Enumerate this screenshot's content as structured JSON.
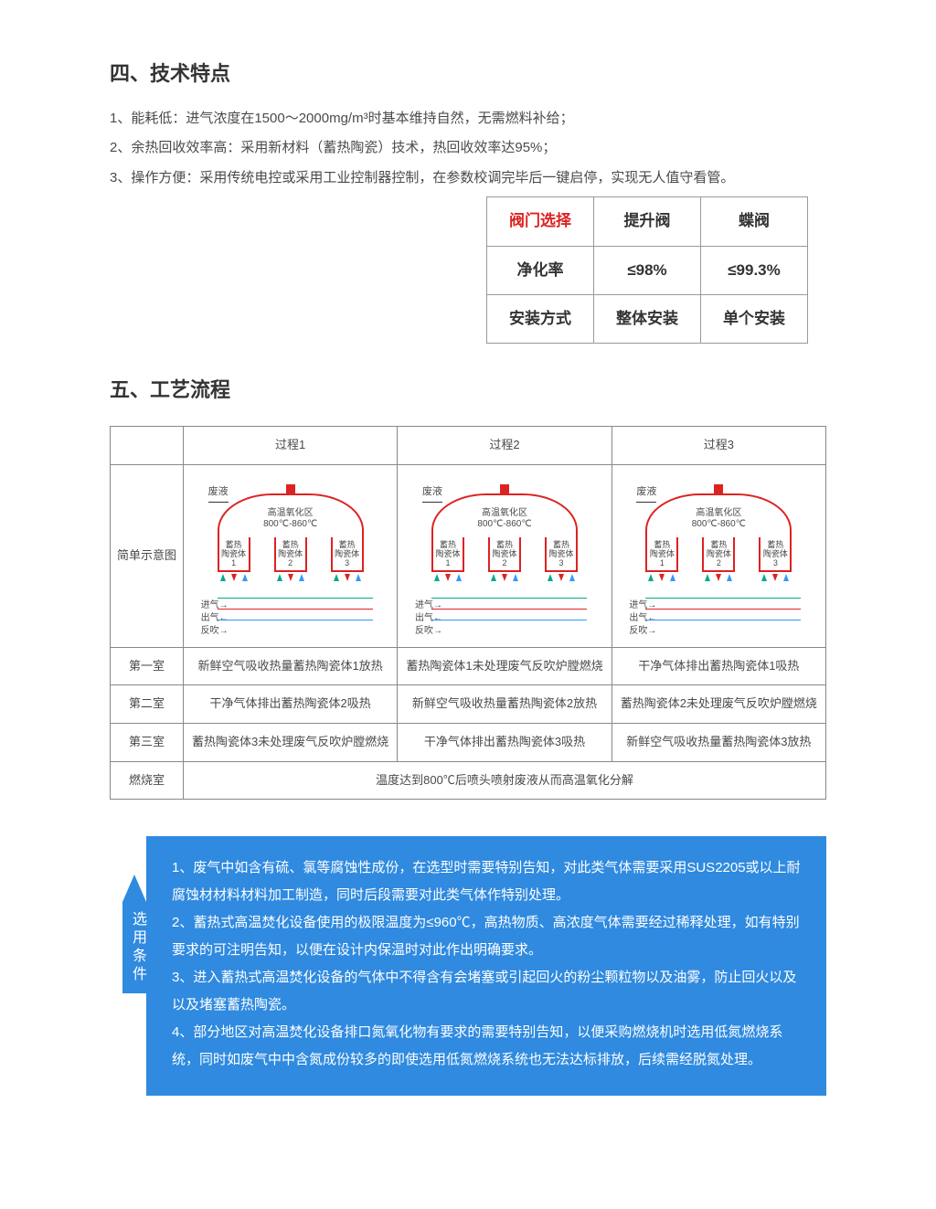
{
  "section4": {
    "heading": "四、技术特点",
    "items": [
      "1、能耗低：进气浓度在1500～2000mg/m³时基本维持自然，无需燃料补给；",
      "2、余热回收效率高：采用新材料（蓄热陶瓷）技术，热回收效率达95%；",
      "3、操作方便：采用传统电控或采用工业控制器控制，在参数校调完毕后一键启停，实现无人值守看管。"
    ]
  },
  "valve_table": {
    "header": [
      "阀门选择",
      "提升阀",
      "蝶阀"
    ],
    "rows": [
      [
        "净化率",
        "≤98%",
        "≤99.3%"
      ],
      [
        "安装方式",
        "整体安装",
        "单个安装"
      ]
    ],
    "header_red_index": 0,
    "border_color": "#999999",
    "text_color": "#333333",
    "red_color": "#dd2222",
    "cell_padding": "10px 24px",
    "font_size": 17
  },
  "section5": {
    "heading": "五、工艺流程"
  },
  "process_table": {
    "header_row": [
      "",
      "过程1",
      "过程2",
      "过程3"
    ],
    "diagram_row_label": "简单示意图",
    "diagram": {
      "waste_label": "废液",
      "zone_label_line1": "高温氧化区",
      "zone_label_line2": "800℃-860℃",
      "chamber_label_prefix": "蓄热",
      "chamber_label_line2": "陶瓷体",
      "chamber_numbers": [
        "1",
        "2",
        "3"
      ],
      "inlet_label": "进气→",
      "outlet_label": "出气←",
      "purge_label": "反吹→",
      "zone_border_color": "#dd2222",
      "arrow_green": "#00aa88",
      "arrow_red": "#dd2222",
      "arrow_blue": "#3399ff"
    },
    "rows": [
      {
        "label": "第一室",
        "cells": [
          "新鲜空气吸收热量蓄热陶瓷体1放热",
          "蓄热陶瓷体1未处理废气反吹炉膛燃烧",
          "干净气体排出蓄热陶瓷体1吸热"
        ]
      },
      {
        "label": "第二室",
        "cells": [
          "干净气体排出蓄热陶瓷体2吸热",
          "新鲜空气吸收热量蓄热陶瓷体2放热",
          "蓄热陶瓷体2未处理废气反吹炉膛燃烧"
        ]
      },
      {
        "label": "第三室",
        "cells": [
          "蓄热陶瓷体3未处理废气反吹炉膛燃烧",
          "干净气体排出蓄热陶瓷体3吸热",
          "新鲜空气吸收热量蓄热陶瓷体3放热"
        ]
      }
    ],
    "combustion_row": {
      "label": "燃烧室",
      "merged_text": "温度达到800℃后喷头喷射废液从而高温氧化分解"
    },
    "border_color": "#888888",
    "font_size": 13
  },
  "conditions": {
    "tab_label": "选用条件",
    "items": [
      "1、废气中如含有硫、氯等腐蚀性成份，在选型时需要特别告知，对此类气体需要采用SUS2205或以上耐腐蚀材材料材料加工制造，同时后段需要对此类气体作特别处理。",
      "2、蓄热式高温焚化设备使用的极限温度为≤960℃，高热物质、高浓度气体需要经过稀释处理，如有特别要求的可注明告知，以便在设计内保温时对此作出明确要求。",
      "3、进入蓄热式高温焚化设备的气体中不得含有会堵塞或引起回火的粉尘颗粒物以及油雾，防止回火以及以及堵塞蓄热陶瓷。",
      "4、部分地区对高温焚化设备排口氮氧化物有要求的需要特别告知，以便采购燃烧机时选用低氮燃烧系统，同时如废气中中含氮成份较多的即使选用低氮燃烧系统也无法达标排放，后续需经脱氮处理。"
    ],
    "background_color": "#2f8ae0",
    "text_color": "#ffffff",
    "font_size": 15
  }
}
